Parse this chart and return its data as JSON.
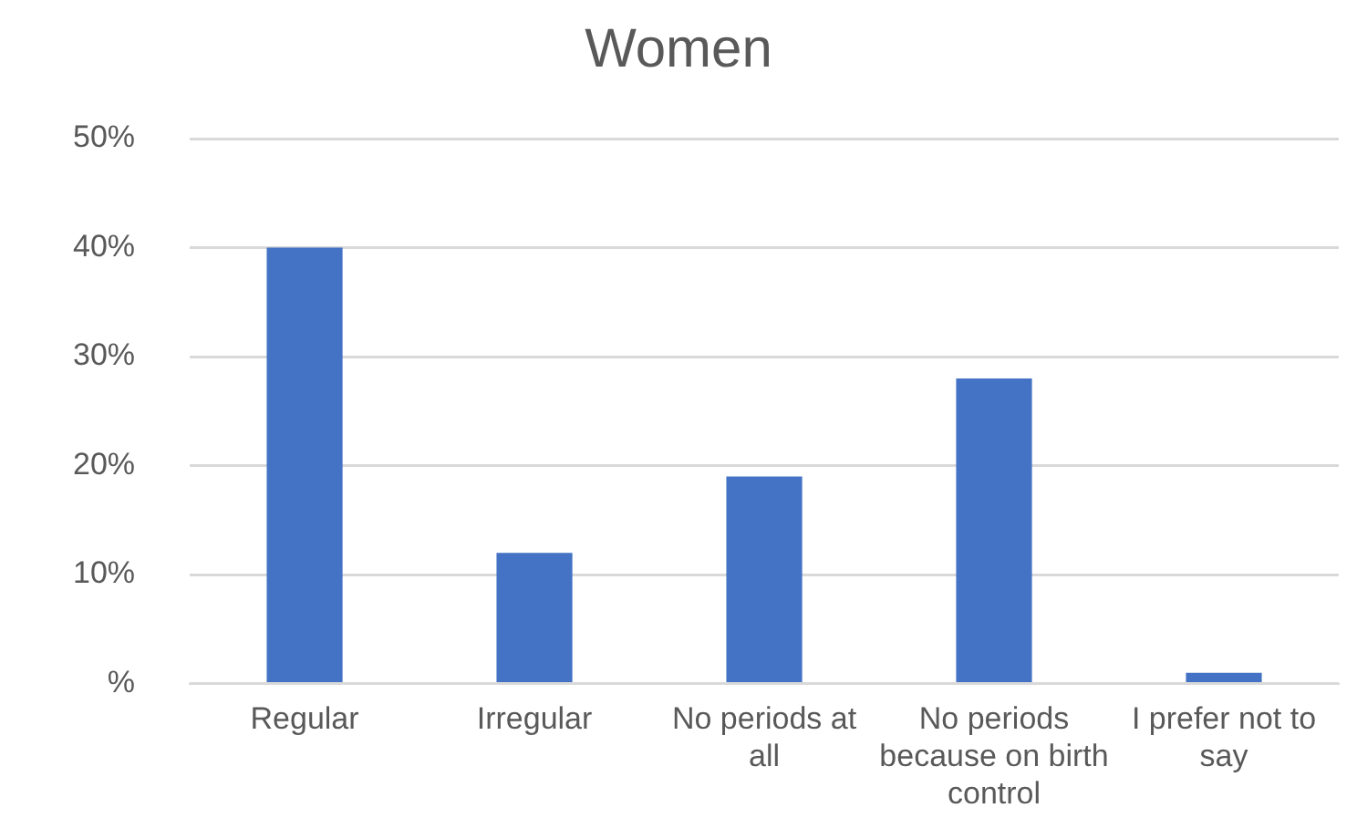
{
  "chart_data": {
    "type": "bar",
    "title": "Women",
    "categories": [
      "Regular",
      "Irregular",
      "No periods at all",
      "No periods because on birth control",
      "I prefer not to say"
    ],
    "values": [
      40,
      12,
      19,
      28,
      1
    ],
    "color": "#4472c4",
    "ylim": [
      0,
      50
    ],
    "yticks": [
      {
        "value": 0,
        "label": "%"
      },
      {
        "value": 10,
        "label": "10%"
      },
      {
        "value": 20,
        "label": "20%"
      },
      {
        "value": 30,
        "label": "30%"
      },
      {
        "value": 40,
        "label": "40%"
      },
      {
        "value": 50,
        "label": "50%"
      }
    ],
    "grid": "y",
    "legend": false
  }
}
